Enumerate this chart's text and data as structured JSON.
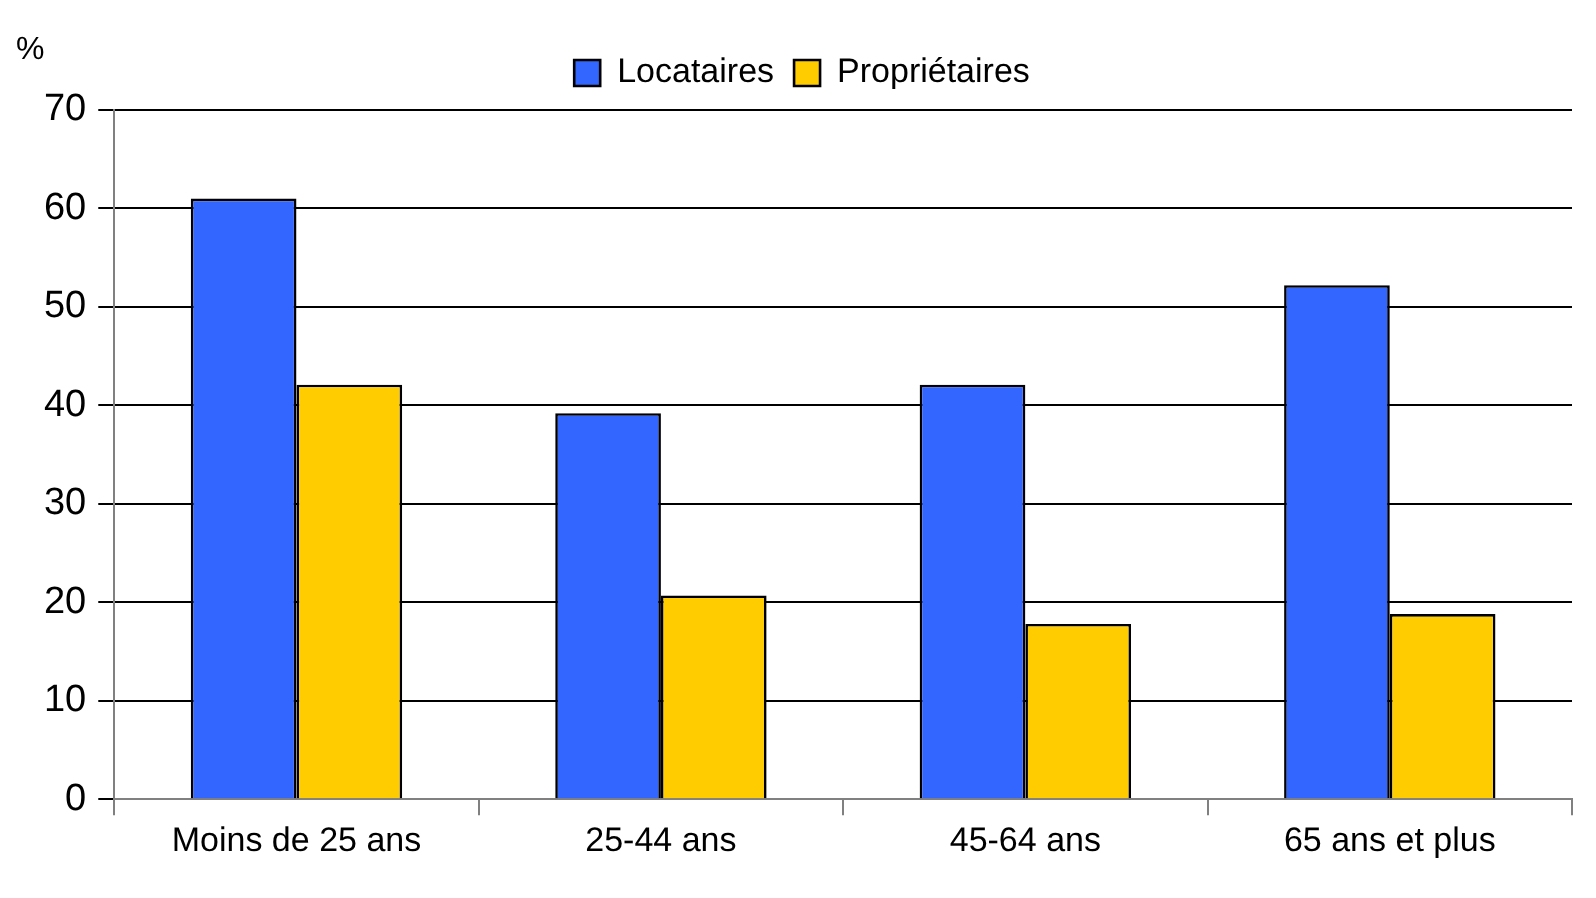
{
  "chart_data": {
    "type": "bar",
    "ylabel": "%",
    "categories": [
      "Moins de 25 ans",
      "25-44 ans",
      "45-64 ans",
      "65 ans et plus"
    ],
    "series": [
      {
        "name": "Locataires",
        "color": "#3366ff",
        "values": [
          61,
          39.2,
          42.1,
          52.2
        ]
      },
      {
        "name": "Propriétaires",
        "color": "#ffcc00",
        "values": [
          42.1,
          20.7,
          17.8,
          18.8
        ]
      }
    ],
    "ylim": [
      0,
      70
    ],
    "yticks": [
      0,
      10,
      20,
      30,
      40,
      50,
      60,
      70
    ],
    "grid": "y",
    "legend": "top"
  }
}
